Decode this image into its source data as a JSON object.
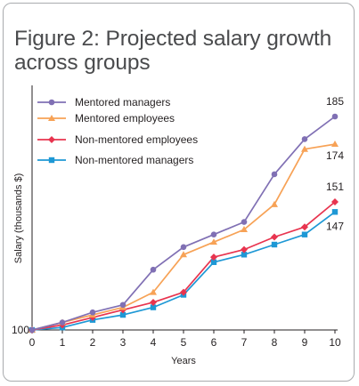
{
  "title_line1": "Figure 2: Projected salary growth",
  "title_line2": "across groups",
  "chart_data": {
    "type": "line",
    "title": "Figure 2: Projected salary growth across groups",
    "xlabel": "Years",
    "ylabel": "Salary (thousands $)",
    "x": [
      0,
      1,
      2,
      3,
      4,
      5,
      6,
      7,
      8,
      9,
      10
    ],
    "xlim": [
      0,
      10
    ],
    "ylim": [
      100,
      185
    ],
    "y_tick_labels": [
      "100"
    ],
    "grid": false,
    "legend_position": "top-left",
    "series": [
      {
        "name": "Mentored managers",
        "color": "#8070b4",
        "marker": "circle",
        "values": [
          100,
          103,
          107,
          110,
          124,
          133,
          138,
          143,
          162,
          176,
          185
        ],
        "end_label": "185"
      },
      {
        "name": "Mentored employees",
        "color": "#f7a256",
        "marker": "triangle",
        "values": [
          100,
          103,
          106,
          109,
          115,
          130,
          135,
          140,
          150,
          172,
          174
        ],
        "end_label": "174"
      },
      {
        "name": "Non-mentored employees",
        "color": "#e8344f",
        "marker": "diamond",
        "values": [
          100,
          102,
          105,
          108,
          111,
          115,
          129,
          132,
          137,
          141,
          151
        ],
        "end_label": "151"
      },
      {
        "name": "Non-mentored managers",
        "color": "#1e98d5",
        "marker": "square",
        "values": [
          100,
          101,
          104,
          106,
          109,
          114,
          127,
          130,
          134,
          138,
          147
        ],
        "end_label": "147"
      }
    ]
  }
}
